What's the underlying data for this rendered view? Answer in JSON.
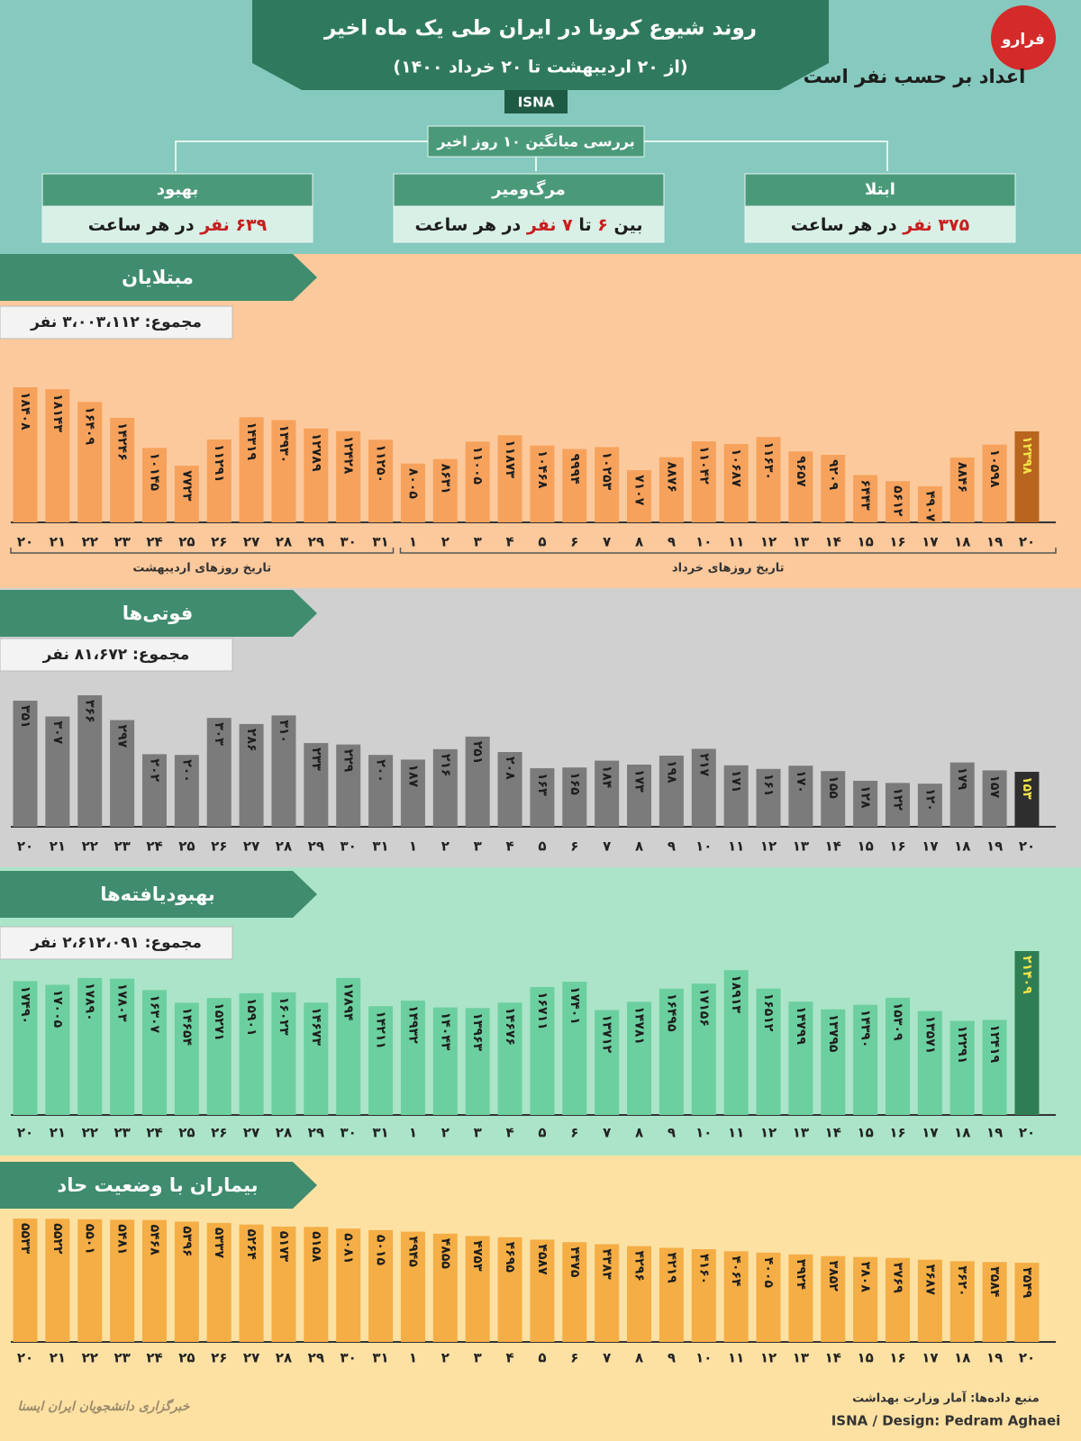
{
  "header": {
    "title": "روند شیوع کرونا در ایران طی یک ماه اخیر",
    "subtitle": "(از ۲۰ اردیبهشت تا ۲۰ خرداد ۱۴۰۰)",
    "tag": "ISNA",
    "note": "اعداد بر حسب نفر است",
    "logo": "فرارو"
  },
  "summary": {
    "label": "بررسی میانگین ۱۰ روز اخیر",
    "boxes": [
      {
        "title": "ابتلا",
        "parts": [
          "۳۷۵ نفر",
          " در هر ساعت"
        ]
      },
      {
        "title": "مرگ‌ومیر",
        "parts": [
          "بین ",
          "۶",
          " تا ",
          "۷ نفر",
          " در هر ساعت"
        ]
      },
      {
        "title": "بهبود",
        "parts": [
          "۶۳۹ نفر",
          " در هر ساعت"
        ]
      }
    ]
  },
  "chart_data": [
    {
      "type": "bar",
      "title": "مبتلایان",
      "total": "مجموع: ۳،۰۰۳،۱۱۲ نفر",
      "group_labels": [
        "تاریخ روزهای اردیبهشت",
        "تاریخ روزهای خرداد"
      ],
      "categories": [
        "۲۰",
        "۲۱",
        "۲۲",
        "۲۳",
        "۲۴",
        "۲۵",
        "۲۶",
        "۲۷",
        "۲۸",
        "۲۹",
        "۳۰",
        "۳۱",
        "۱",
        "۲",
        "۳",
        "۴",
        "۵",
        "۶",
        "۷",
        "۸",
        "۹",
        "۱۰",
        "۱۱",
        "۱۲",
        "۱۳",
        "۱۴",
        "۱۵",
        "۱۶",
        "۱۷",
        "۱۸",
        "۱۹",
        "۲۰"
      ],
      "values": [
        18408,
        18143,
        16409,
        14246,
        10145,
        7723,
        11291,
        14319,
        13930,
        12789,
        12428,
        11250,
        8005,
        8631,
        11005,
        11873,
        10468,
        9994,
        10253,
        7107,
        8876,
        11042,
        10687,
        11630,
        9657,
        9209,
        6443,
        5612,
        4907,
        8846,
        10598,
        12398
      ],
      "value_labels": [
        "۱۸۴۰۸",
        "۱۸۱۴۳",
        "۱۶۴۰۹",
        "۱۴۲۴۶",
        "۱۰۱۴۵",
        "۷۷۲۳",
        "۱۱۲۹۱",
        "۱۴۳۱۹",
        "۱۳۹۳۰",
        "۱۲۷۸۹",
        "۱۲۴۲۸",
        "۱۱۲۵۰",
        "۸۰۰۵",
        "۸۶۳۱",
        "۱۱۰۰۵",
        "۱۱۸۷۳",
        "۱۰۴۶۸",
        "۹۹۹۴",
        "۱۰۲۵۳",
        "۷۱۰۷",
        "۸۸۷۶",
        "۱۱۰۴۲",
        "۱۰۶۸۷",
        "۱۱۶۳۰",
        "۹۶۵۷",
        "۹۲۰۹",
        "۶۴۴۳",
        "۵۶۱۲",
        "۴۹۰۷",
        "۸۸۴۶",
        "۱۰۵۹۸",
        "۱۲۳۹۸"
      ],
      "color": "#f6a25c",
      "highlight_color": "#b8651f"
    },
    {
      "type": "bar",
      "title": "فوتی‌ها",
      "total": "مجموع: ۸۱،۶۷۲ نفر",
      "categories": [
        "۲۰",
        "۲۱",
        "۲۲",
        "۲۳",
        "۲۴",
        "۲۵",
        "۲۶",
        "۲۷",
        "۲۸",
        "۲۹",
        "۳۰",
        "۳۱",
        "۱",
        "۲",
        "۳",
        "۴",
        "۵",
        "۶",
        "۷",
        "۸",
        "۹",
        "۱۰",
        "۱۱",
        "۱۲",
        "۱۳",
        "۱۴",
        "۱۵",
        "۱۶",
        "۱۷",
        "۱۸",
        "۱۹",
        "۲۰"
      ],
      "values": [
        351,
        307,
        366,
        297,
        202,
        200,
        303,
        286,
        310,
        233,
        229,
        200,
        187,
        216,
        251,
        208,
        163,
        165,
        184,
        173,
        198,
        217,
        171,
        161,
        170,
        155,
        128,
        122,
        120,
        179,
        157,
        153
      ],
      "value_labels": [
        "۳۵۱",
        "۳۰۷",
        "۳۶۶",
        "۲۹۷",
        "۲۰۲",
        "۲۰۰",
        "۳۰۳",
        "۲۸۶",
        "۳۱۰",
        "۲۳۳",
        "۲۲۹",
        "۲۰۰",
        "۱۸۷",
        "۲۱۶",
        "۲۵۱",
        "۲۰۸",
        "۱۶۳",
        "۱۶۵",
        "۱۸۴",
        "۱۷۳",
        "۱۹۸",
        "۲۱۷",
        "۱۷۱",
        "۱۶۱",
        "۱۷۰",
        "۱۵۵",
        "۱۲۸",
        "۱۲۲",
        "۱۲۰",
        "۱۷۹",
        "۱۵۷",
        "۱۵۳"
      ],
      "color": "#7b7b7b",
      "highlight_color": "#2e2e2e"
    },
    {
      "type": "bar",
      "title": "بهبودیافته‌ها",
      "total": "مجموع: ۲،۶۱۲،۰۹۱ نفر",
      "categories": [
        "۲۰",
        "۲۱",
        "۲۲",
        "۲۳",
        "۲۴",
        "۲۵",
        "۲۶",
        "۲۷",
        "۲۸",
        "۲۹",
        "۳۰",
        "۳۱",
        "۱",
        "۲",
        "۳",
        "۴",
        "۵",
        "۶",
        "۷",
        "۸",
        "۹",
        "۱۰",
        "۱۱",
        "۱۲",
        "۱۳",
        "۱۴",
        "۱۵",
        "۱۶",
        "۱۷",
        "۱۸",
        "۱۹",
        "۲۰"
      ],
      "values": [
        17490,
        17005,
        17890,
        17803,
        16307,
        14654,
        15271,
        15901,
        16023,
        14673,
        17894,
        14211,
        14932,
        14043,
        13963,
        14676,
        16711,
        17401,
        13712,
        14781,
        16495,
        17156,
        18913,
        16512,
        14799,
        13795,
        14390,
        15309,
        13571,
        12291,
        12419,
        21409
      ],
      "value_labels": [
        "۱۷۴۹۰",
        "۱۷۰۰۵",
        "۱۷۸۹۰",
        "۱۷۸۰۳",
        "۱۶۳۰۷",
        "۱۴۶۵۴",
        "۱۵۲۷۱",
        "۱۵۹۰۱",
        "۱۶۰۲۳",
        "۱۴۶۷۳",
        "۱۷۸۹۴",
        "۱۴۲۱۱",
        "۱۴۹۳۲",
        "۱۴۰۴۳",
        "۱۳۹۶۳",
        "۱۴۶۷۶",
        "۱۶۷۱۱",
        "۱۷۴۰۱",
        "۱۳۷۱۲",
        "۱۴۷۸۱",
        "۱۶۴۹۵",
        "۱۷۱۵۶",
        "۱۸۹۱۳",
        "۱۶۵۱۲",
        "۱۴۷۹۹",
        "۱۳۷۹۵",
        "۱۴۳۹۰",
        "۱۵۳۰۹",
        "۱۳۵۷۱",
        "۱۲۲۹۱",
        "۱۲۴۱۹",
        "۲۱۴۰۹"
      ],
      "color": "#6ccf9f",
      "highlight_color": "#2f7d53"
    },
    {
      "type": "bar",
      "title": "بیماران با وضعیت حاد",
      "categories": [
        "۲۰",
        "۲۱",
        "۲۲",
        "۲۳",
        "۲۴",
        "۲۵",
        "۲۶",
        "۲۷",
        "۲۸",
        "۲۹",
        "۳۰",
        "۳۱",
        "۱",
        "۲",
        "۳",
        "۴",
        "۵",
        "۶",
        "۷",
        "۸",
        "۹",
        "۱۰",
        "۱۱",
        "۱۲",
        "۱۳",
        "۱۴",
        "۱۵",
        "۱۶",
        "۱۷",
        "۱۸",
        "۱۹",
        "۲۰"
      ],
      "values": [
        5533,
        5522,
        5501,
        5481,
        5468,
        5396,
        5337,
        5264,
        5173,
        5158,
        5081,
        5015,
        4945,
        4855,
        4753,
        4695,
        4587,
        4475,
        4383,
        4296,
        4219,
        4160,
        4064,
        4005,
        3924,
        3852,
        3808,
        3769,
        3687,
        3620,
        3584,
        3549
      ],
      "value_labels": [
        "۵۵۳۳",
        "۵۵۲۲",
        "۵۵۰۱",
        "۵۴۸۱",
        "۵۴۶۸",
        "۵۳۹۶",
        "۵۳۳۷",
        "۵۲۶۴",
        "۵۱۷۳",
        "۵۱۵۸",
        "۵۰۸۱",
        "۵۰۱۵",
        "۴۹۴۵",
        "۴۸۵۵",
        "۴۷۵۳",
        "۴۶۹۵",
        "۴۵۸۷",
        "۴۴۷۵",
        "۴۳۸۳",
        "۴۲۹۶",
        "۴۲۱۹",
        "۴۱۶۰",
        "۴۰۶۴",
        "۴۰۰۵",
        "۳۹۲۴",
        "۳۸۵۲",
        "۳۸۰۸",
        "۳۷۶۹",
        "۳۶۸۷",
        "۳۶۲۰",
        "۳۵۸۴",
        "۳۵۴۹"
      ],
      "color": "#f4ae45",
      "highlight_color": "#f4ae45"
    }
  ],
  "footer": {
    "source": "منبع داده‌ها: آمار وزارت بهداشت",
    "credit": "ISNA / Design: Pedram Aghaei",
    "watermark": "خبرگزاری دانشجویان ایران ایسنا"
  }
}
